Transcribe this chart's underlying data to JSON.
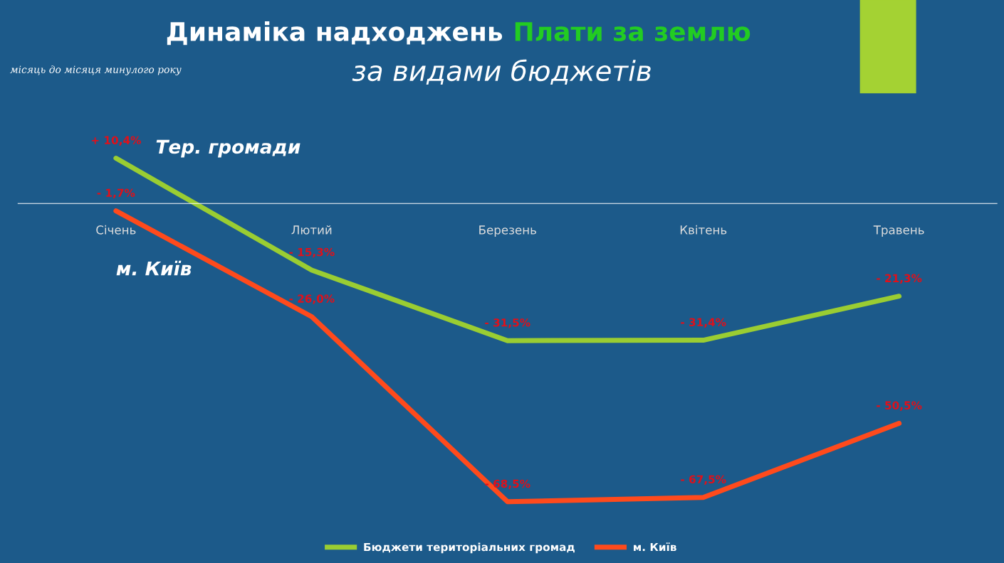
{
  "chart_data": {
    "type": "line",
    "title": "Динаміка надходжень",
    "subtitle": "за видами бюджетів",
    "annotations": [
      "місяць до місяця минулого року",
      "Плати за землю",
      {
        "text": "Тер. громади",
        "x": "Січень",
        "y": 10.4
      },
      {
        "text": "м. Київ",
        "x": "Січень",
        "y": -1.7
      }
    ],
    "categories": [
      "Січень",
      "Лютий",
      "Березень",
      "Квітень",
      "Травень"
    ],
    "series": [
      {
        "name": "Бюджети територіальних громад",
        "color": "#9acd32",
        "values": [
          10.4,
          -15.3,
          -31.5,
          -31.4,
          -21.3
        ],
        "value_labels": [
          "+ 10,4%",
          "- 15,3%",
          "- 31,5%",
          "- 31,4%",
          "- 21,3%"
        ]
      },
      {
        "name": "м. Київ",
        "color": "#ff4a1c",
        "values": [
          -1.7,
          -26.0,
          -68.5,
          -67.5,
          -50.5
        ],
        "value_labels": [
          "- 1,7%",
          "- 26,0%",
          "- 68,5%",
          "- 67,5%",
          "- 50,5%"
        ]
      }
    ],
    "legend": "bottom",
    "grid": false,
    "marker": "none",
    "line_style": "solid"
  }
}
